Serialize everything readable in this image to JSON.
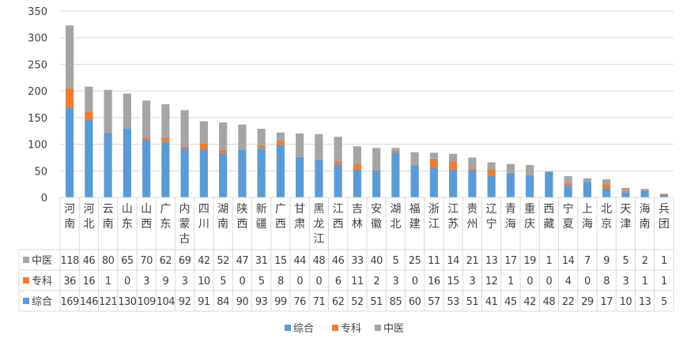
{
  "chart_data": {
    "type": "bar",
    "stacked": true,
    "title": "",
    "xlabel": "",
    "ylabel": "",
    "ylim": [
      0,
      350
    ],
    "yticks": [
      0,
      50,
      100,
      150,
      200,
      250,
      300,
      350
    ],
    "grid": true,
    "legend_position": "bottom",
    "categories": [
      "河南",
      "河北",
      "云南",
      "山东",
      "山西",
      "广东",
      "内蒙古",
      "四川",
      "湖南",
      "陕西",
      "新疆",
      "广西",
      "甘肃",
      "黑龙江",
      "江西",
      "吉林",
      "安徽",
      "湖北",
      "福建",
      "浙江",
      "江苏",
      "贵州",
      "辽宁",
      "青海",
      "重庆",
      "西藏",
      "宁夏",
      "上海",
      "北京",
      "天津",
      "海南",
      "兵团"
    ],
    "series": [
      {
        "name": "综合",
        "color": "#5B9BD5",
        "values": [
          169,
          146,
          121,
          130,
          109,
          104,
          92,
          91,
          84,
          90,
          93,
          99,
          76,
          71,
          62,
          52,
          51,
          85,
          60,
          57,
          53,
          51,
          41,
          45,
          42,
          48,
          22,
          29,
          17,
          10,
          13,
          5
        ]
      },
      {
        "name": "专科",
        "color": "#ED7D31",
        "values": [
          36,
          16,
          1,
          0,
          3,
          9,
          3,
          10,
          5,
          0,
          5,
          8,
          0,
          0,
          6,
          11,
          2,
          3,
          0,
          16,
          15,
          3,
          12,
          1,
          0,
          0,
          4,
          0,
          8,
          3,
          1,
          1
        ]
      },
      {
        "name": "中医",
        "color": "#A5A5A5",
        "values": [
          118,
          46,
          80,
          65,
          70,
          62,
          69,
          42,
          52,
          47,
          31,
          15,
          44,
          48,
          46,
          33,
          40,
          5,
          25,
          11,
          14,
          21,
          13,
          17,
          19,
          1,
          14,
          7,
          9,
          5,
          2,
          1
        ]
      }
    ],
    "table_row_order": [
      "中医",
      "专科",
      "综合"
    ],
    "legend_order": [
      "综合",
      "专科",
      "中医"
    ]
  }
}
